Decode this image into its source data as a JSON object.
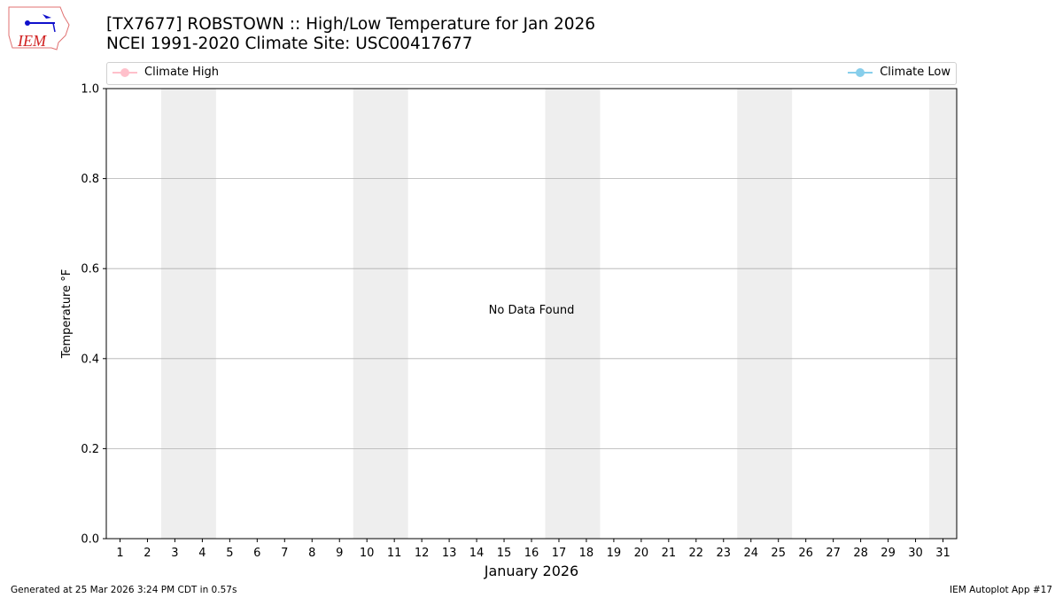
{
  "header": {
    "title_line1": "[TX7677] ROBSTOWN :: High/Low Temperature for Jan 2026",
    "title_line2": "NCEI 1991-2020 Climate Site: USC00417677",
    "logo_text": "IEM"
  },
  "footer": {
    "left": "Generated at 25 Mar 2026 3:24 PM CDT in 0.57s",
    "right": "IEM Autoplot App #17"
  },
  "chart_data": {
    "type": "line",
    "xlabel": "January 2026",
    "ylabel": "Temperature °F",
    "xlim": [
      0.5,
      31.5
    ],
    "ylim": [
      0,
      1
    ],
    "x_ticks": [
      "1",
      "2",
      "3",
      "4",
      "5",
      "6",
      "7",
      "8",
      "9",
      "10",
      "11",
      "12",
      "13",
      "14",
      "15",
      "16",
      "17",
      "18",
      "19",
      "20",
      "21",
      "22",
      "23",
      "24",
      "25",
      "26",
      "27",
      "28",
      "29",
      "30",
      "31"
    ],
    "y_ticks": [
      "0.0",
      "0.2",
      "0.4",
      "0.6",
      "0.8",
      "1.0"
    ],
    "grid": "horizontal",
    "weekend_shading": [
      [
        3,
        4
      ],
      [
        10,
        11
      ],
      [
        17,
        18
      ],
      [
        24,
        25
      ],
      [
        31,
        31
      ]
    ],
    "annotation": "No Data Found",
    "legend_placement": "top",
    "series": [
      {
        "name": "Climate High",
        "color": "#ffc0cb",
        "values": []
      },
      {
        "name": "Climate Low",
        "color": "#87ceeb",
        "values": []
      }
    ],
    "shade_color": "#eeeeee",
    "grid_color": "#b0b0b0"
  }
}
